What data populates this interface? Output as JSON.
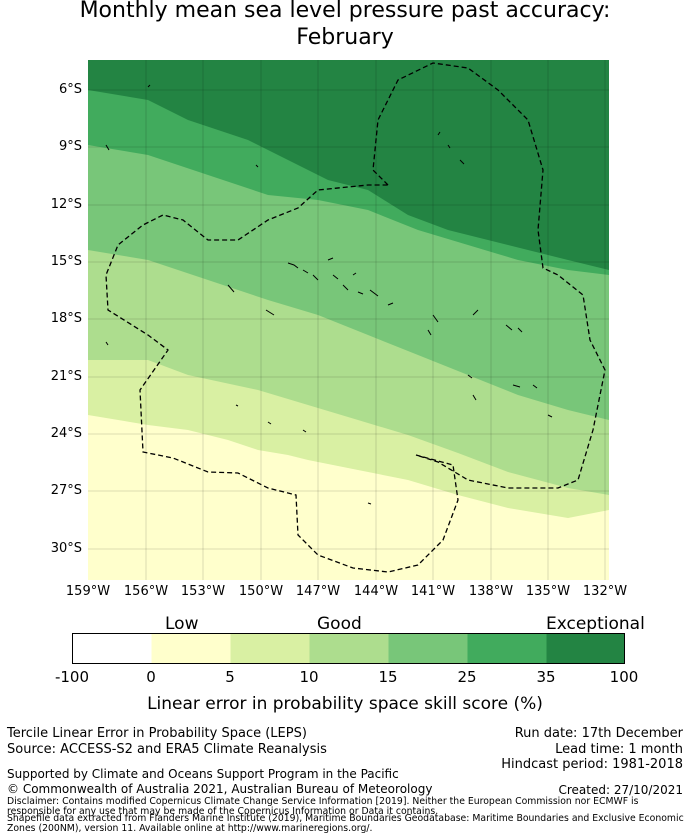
{
  "title_line1": "Monthly mean sea level pressure past accuracy:",
  "title_line2": "February",
  "latitude_labels": [
    "6°S",
    "9°S",
    "12°S",
    "15°S",
    "18°S",
    "21°S",
    "24°S",
    "27°S",
    "30°S"
  ],
  "longitude_labels": [
    "159°W",
    "156°W",
    "153°W",
    "150°W",
    "147°W",
    "144°W",
    "141°W",
    "138°W",
    "135°W",
    "132°W"
  ],
  "colorbar": {
    "category_labels": {
      "low": "Low",
      "good": "Good",
      "exceptional": "Exceptional"
    },
    "tick_labels": [
      "-100",
      "0",
      "5",
      "10",
      "15",
      "25",
      "35",
      "100"
    ],
    "colors": [
      "#ffffff",
      "#ffffcc",
      "#d9f0a3",
      "#addd8e",
      "#78c679",
      "#41ab5d",
      "#238443"
    ],
    "title": "Linear error in probability space skill score (%)"
  },
  "footer": {
    "product": "Tercile Linear Error in Probability Space (LEPS)",
    "source": "Source: ACCESS-S2 and ERA5 Climate Reanalysis",
    "run_date": "Run date: 17th December",
    "lead_time": "Lead time: 1 month",
    "hindcast": "Hindcast period: 1981-2018",
    "supported": "Supported by Climate and Oceans Support Program in the Pacific",
    "copyright": "© Commonwealth of Australia 2021, Australian Bureau of Meteorology",
    "created": "Created: 27/10/2021",
    "disclaimer1": "Disclaimer: Contains modified Copernicus Climate Change Service Information [2019]. Neither the European Commission nor ECMWF is",
    "disclaimer2": "responsible for any use that may be made of the Copernicus Information or Data it contains.",
    "disclaimer3": "Shapefile data extracted from Flanders Marine Institute (2019), Maritime Boundaries Geodatabase: Maritime Boundaries and Exclusive Economic",
    "disclaimer4": "Zones (200NM), version 11. Available online at http://www.marineregions.org/."
  }
}
